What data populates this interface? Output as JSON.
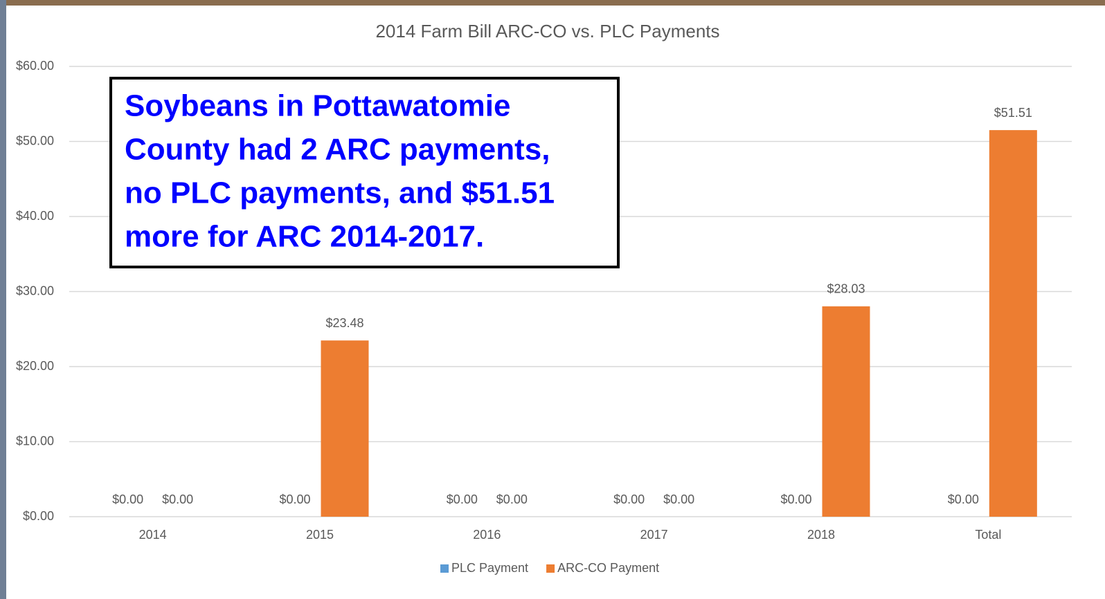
{
  "chart_data": {
    "type": "bar",
    "title": "2014 Farm Bill ARC-CO vs. PLC Payments",
    "categories": [
      "2014",
      "2015",
      "2016",
      "2017",
      "2018",
      "Total"
    ],
    "series": [
      {
        "name": "PLC Payment",
        "color": "#5b9bd5",
        "values": [
          0,
          0,
          0,
          0,
          0,
          0
        ],
        "value_labels": [
          "$0.00",
          "$0.00",
          "$0.00",
          "$0.00",
          "$0.00",
          "$0.00"
        ]
      },
      {
        "name": "ARC-CO Payment",
        "color": "#ed7d31",
        "values": [
          0,
          23.48,
          0,
          0,
          28.03,
          51.51
        ],
        "value_labels": [
          "$0.00",
          "$23.48",
          "$0.00",
          "$0.00",
          "$28.03",
          "$51.51"
        ]
      }
    ],
    "ylim": [
      0,
      60
    ],
    "yticks": [
      {
        "value": 0,
        "label": "$0.00"
      },
      {
        "value": 10,
        "label": "$10.00"
      },
      {
        "value": 20,
        "label": "$20.00"
      },
      {
        "value": 30,
        "label": "$30.00"
      },
      {
        "value": 40,
        "label": "$40.00"
      },
      {
        "value": 50,
        "label": "$50.00"
      },
      {
        "value": 60,
        "label": "$60.00"
      }
    ],
    "grid": true,
    "legend": "bottom",
    "annotation": [
      "Soybeans in Pottawatomie",
      "County had 2 ARC payments,",
      "no PLC payments, and $51.51",
      "more for ARC 2014-2017."
    ],
    "annotation_color": "#0000ff"
  }
}
